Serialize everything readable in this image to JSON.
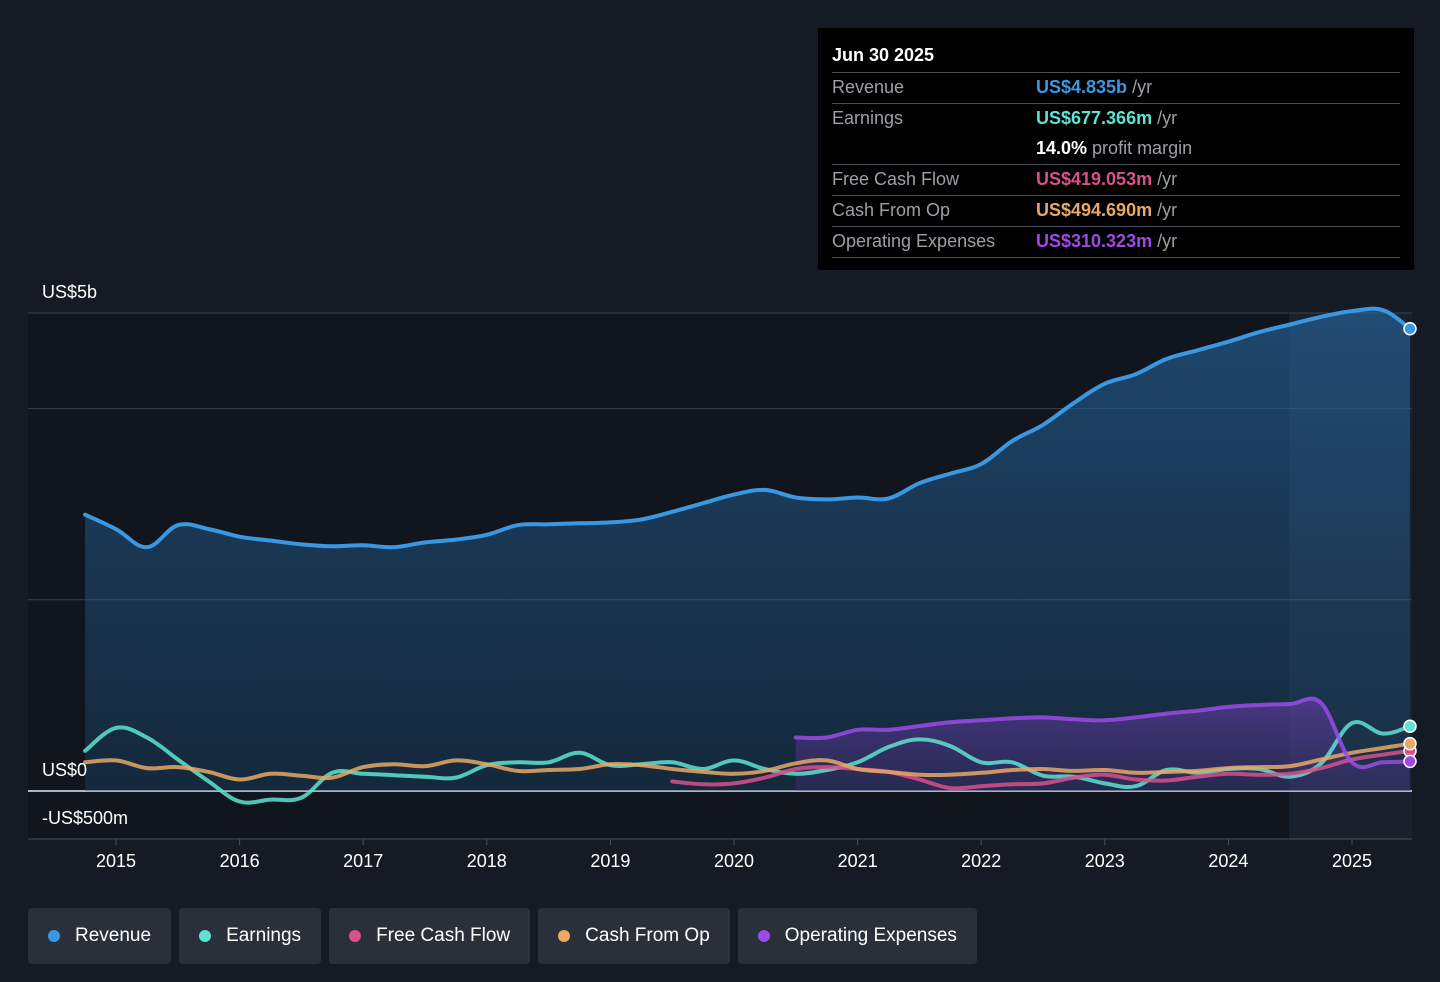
{
  "chart_data": {
    "type": "line",
    "y_axis_labels": {
      "top": "US$5b",
      "zero": "US$0",
      "bottom": "-US$500m"
    },
    "ylim": [
      -500,
      5000
    ],
    "x_range": [
      2014.3,
      2025.5
    ],
    "x_ticks": [
      "2015",
      "2016",
      "2017",
      "2018",
      "2019",
      "2020",
      "2021",
      "2022",
      "2023",
      "2024",
      "2025"
    ],
    "forecast_start": 2024.5,
    "series": [
      {
        "name": "Revenue",
        "key": "revenue",
        "color": "#3a98e2",
        "area": true,
        "points": [
          [
            2014.75,
            2890
          ],
          [
            2015.0,
            2740
          ],
          [
            2015.25,
            2550
          ],
          [
            2015.5,
            2780
          ],
          [
            2015.75,
            2740
          ],
          [
            2016.0,
            2660
          ],
          [
            2016.25,
            2620
          ],
          [
            2016.5,
            2580
          ],
          [
            2016.75,
            2560
          ],
          [
            2017.0,
            2570
          ],
          [
            2017.25,
            2550
          ],
          [
            2017.5,
            2600
          ],
          [
            2017.75,
            2630
          ],
          [
            2018.0,
            2680
          ],
          [
            2018.25,
            2780
          ],
          [
            2018.5,
            2790
          ],
          [
            2018.75,
            2800
          ],
          [
            2019.0,
            2810
          ],
          [
            2019.25,
            2840
          ],
          [
            2019.5,
            2920
          ],
          [
            2019.75,
            3010
          ],
          [
            2020.0,
            3100
          ],
          [
            2020.25,
            3150
          ],
          [
            2020.5,
            3070
          ],
          [
            2020.75,
            3050
          ],
          [
            2021.0,
            3070
          ],
          [
            2021.25,
            3060
          ],
          [
            2021.5,
            3220
          ],
          [
            2021.75,
            3320
          ],
          [
            2022.0,
            3420
          ],
          [
            2022.25,
            3660
          ],
          [
            2022.5,
            3830
          ],
          [
            2022.75,
            4060
          ],
          [
            2023.0,
            4260
          ],
          [
            2023.25,
            4360
          ],
          [
            2023.5,
            4520
          ],
          [
            2023.75,
            4610
          ],
          [
            2024.0,
            4700
          ],
          [
            2024.25,
            4800
          ],
          [
            2024.5,
            4880
          ],
          [
            2024.75,
            4960
          ],
          [
            2025.0,
            5020
          ],
          [
            2025.25,
            5030
          ],
          [
            2025.47,
            4835
          ]
        ]
      },
      {
        "name": "Earnings",
        "key": "earnings",
        "color": "#5ee3d0",
        "points": [
          [
            2014.75,
            420
          ],
          [
            2015.0,
            660
          ],
          [
            2015.25,
            560
          ],
          [
            2015.5,
            330
          ],
          [
            2015.75,
            100
          ],
          [
            2016.0,
            -110
          ],
          [
            2016.25,
            -90
          ],
          [
            2016.5,
            -70
          ],
          [
            2016.75,
            190
          ],
          [
            2017.0,
            180
          ],
          [
            2017.25,
            165
          ],
          [
            2017.5,
            150
          ],
          [
            2017.75,
            140
          ],
          [
            2018.0,
            270
          ],
          [
            2018.25,
            300
          ],
          [
            2018.5,
            300
          ],
          [
            2018.75,
            400
          ],
          [
            2019.0,
            270
          ],
          [
            2019.25,
            280
          ],
          [
            2019.5,
            300
          ],
          [
            2019.75,
            230
          ],
          [
            2020.0,
            320
          ],
          [
            2020.25,
            230
          ],
          [
            2020.5,
            180
          ],
          [
            2020.75,
            220
          ],
          [
            2021.0,
            300
          ],
          [
            2021.25,
            460
          ],
          [
            2021.5,
            540
          ],
          [
            2021.75,
            470
          ],
          [
            2022.0,
            300
          ],
          [
            2022.25,
            300
          ],
          [
            2022.5,
            160
          ],
          [
            2022.75,
            150
          ],
          [
            2023.0,
            80
          ],
          [
            2023.25,
            50
          ],
          [
            2023.5,
            220
          ],
          [
            2023.75,
            190
          ],
          [
            2024.0,
            230
          ],
          [
            2024.25,
            230
          ],
          [
            2024.5,
            150
          ],
          [
            2024.75,
            290
          ],
          [
            2025.0,
            710
          ],
          [
            2025.25,
            600
          ],
          [
            2025.47,
            677
          ]
        ]
      },
      {
        "name": "Free Cash Flow",
        "key": "fcf",
        "color": "#d8508c",
        "points": [
          [
            2019.5,
            100
          ],
          [
            2019.75,
            70
          ],
          [
            2020.0,
            80
          ],
          [
            2020.25,
            140
          ],
          [
            2020.5,
            230
          ],
          [
            2020.75,
            250
          ],
          [
            2021.0,
            230
          ],
          [
            2021.25,
            200
          ],
          [
            2021.5,
            120
          ],
          [
            2021.75,
            30
          ],
          [
            2022.0,
            50
          ],
          [
            2022.25,
            70
          ],
          [
            2022.5,
            80
          ],
          [
            2022.75,
            140
          ],
          [
            2023.0,
            170
          ],
          [
            2023.25,
            120
          ],
          [
            2023.5,
            110
          ],
          [
            2023.75,
            150
          ],
          [
            2024.0,
            180
          ],
          [
            2024.25,
            170
          ],
          [
            2024.5,
            180
          ],
          [
            2024.75,
            240
          ],
          [
            2025.0,
            330
          ],
          [
            2025.25,
            380
          ],
          [
            2025.47,
            419
          ]
        ]
      },
      {
        "name": "Cash From Op",
        "key": "cfo",
        "color": "#e9a864",
        "points": [
          [
            2014.75,
            300
          ],
          [
            2015.0,
            320
          ],
          [
            2015.25,
            240
          ],
          [
            2015.5,
            250
          ],
          [
            2015.75,
            200
          ],
          [
            2016.0,
            120
          ],
          [
            2016.25,
            180
          ],
          [
            2016.5,
            160
          ],
          [
            2016.75,
            140
          ],
          [
            2017.0,
            250
          ],
          [
            2017.25,
            280
          ],
          [
            2017.5,
            260
          ],
          [
            2017.75,
            320
          ],
          [
            2018.0,
            280
          ],
          [
            2018.25,
            210
          ],
          [
            2018.5,
            220
          ],
          [
            2018.75,
            230
          ],
          [
            2019.0,
            280
          ],
          [
            2019.25,
            270
          ],
          [
            2019.5,
            230
          ],
          [
            2019.75,
            200
          ],
          [
            2020.0,
            180
          ],
          [
            2020.25,
            210
          ],
          [
            2020.5,
            290
          ],
          [
            2020.75,
            320
          ],
          [
            2021.0,
            230
          ],
          [
            2021.25,
            200
          ],
          [
            2021.5,
            170
          ],
          [
            2021.75,
            170
          ],
          [
            2022.0,
            190
          ],
          [
            2022.25,
            220
          ],
          [
            2022.5,
            230
          ],
          [
            2022.75,
            210
          ],
          [
            2023.0,
            220
          ],
          [
            2023.25,
            190
          ],
          [
            2023.5,
            200
          ],
          [
            2023.75,
            210
          ],
          [
            2024.0,
            240
          ],
          [
            2024.25,
            250
          ],
          [
            2024.5,
            260
          ],
          [
            2024.75,
            330
          ],
          [
            2025.0,
            400
          ],
          [
            2025.25,
            450
          ],
          [
            2025.47,
            495
          ]
        ]
      },
      {
        "name": "Operating Expenses",
        "key": "opex",
        "color": "#9b4be6",
        "area": true,
        "points": [
          [
            2020.5,
            560
          ],
          [
            2020.75,
            560
          ],
          [
            2021.0,
            640
          ],
          [
            2021.25,
            640
          ],
          [
            2021.5,
            680
          ],
          [
            2021.75,
            720
          ],
          [
            2022.0,
            740
          ],
          [
            2022.25,
            760
          ],
          [
            2022.5,
            770
          ],
          [
            2022.75,
            750
          ],
          [
            2023.0,
            740
          ],
          [
            2023.25,
            770
          ],
          [
            2023.5,
            810
          ],
          [
            2023.75,
            840
          ],
          [
            2024.0,
            880
          ],
          [
            2024.25,
            900
          ],
          [
            2024.5,
            910
          ],
          [
            2024.75,
            920
          ],
          [
            2025.0,
            300
          ],
          [
            2025.25,
            300
          ],
          [
            2025.47,
            310
          ]
        ]
      }
    ]
  },
  "tooltip": {
    "date": "Jun 30 2025",
    "rows": {
      "revenue": {
        "label": "Revenue",
        "value": "US$4.835b",
        "unit": "/yr",
        "color": "#3a98e2"
      },
      "earnings": {
        "label": "Earnings",
        "value": "US$677.366m",
        "unit": "/yr",
        "color": "#5ee3d0"
      },
      "margin": {
        "value": "14.0%",
        "unit": "profit margin",
        "color": "#ffffff"
      },
      "fcf": {
        "label": "Free Cash Flow",
        "value": "US$419.053m",
        "unit": "/yr",
        "color": "#d8508c"
      },
      "cfo": {
        "label": "Cash From Op",
        "value": "US$494.690m",
        "unit": "/yr",
        "color": "#e9a864"
      },
      "opex": {
        "label": "Operating Expenses",
        "value": "US$310.323m",
        "unit": "/yr",
        "color": "#9b4be6"
      }
    }
  },
  "legend": [
    {
      "label": "Revenue",
      "color": "#3a98e2"
    },
    {
      "label": "Earnings",
      "color": "#5ee3d0"
    },
    {
      "label": "Free Cash Flow",
      "color": "#d8508c"
    },
    {
      "label": "Cash From Op",
      "color": "#e9a864"
    },
    {
      "label": "Operating Expenses",
      "color": "#9b4be6"
    }
  ]
}
